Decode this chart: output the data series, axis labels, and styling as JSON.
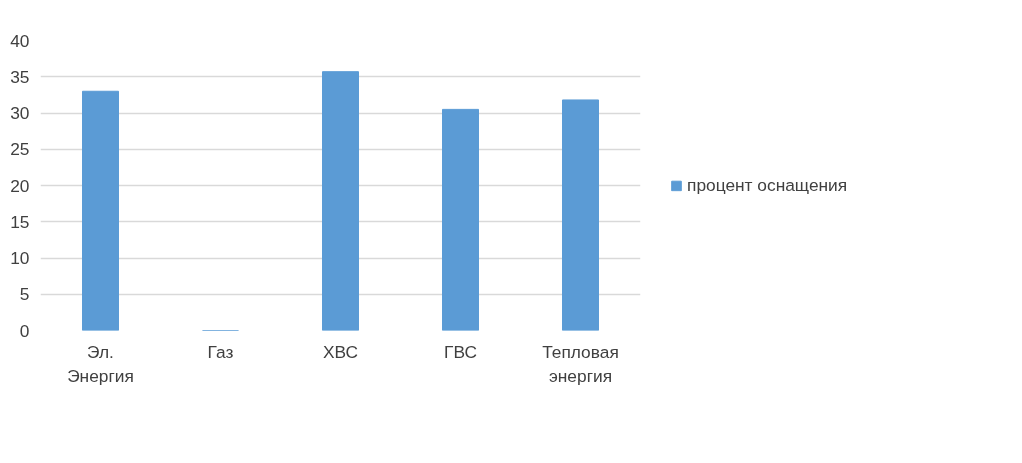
{
  "chart_data": {
    "type": "bar",
    "categories": [
      "Эл. Энергия",
      "Газ",
      "ХВС",
      "ГВС",
      "Тепловая энергия"
    ],
    "series": [
      {
        "name": "процент оснащения",
        "color": "#5b9bd5",
        "values": [
          33,
          0,
          35.7,
          30.5,
          31.8
        ]
      }
    ],
    "ylim": [
      0,
      40
    ],
    "yticks": [
      0,
      5,
      10,
      15,
      20,
      25,
      30,
      35,
      40
    ],
    "grid": "y",
    "legend": "right"
  }
}
